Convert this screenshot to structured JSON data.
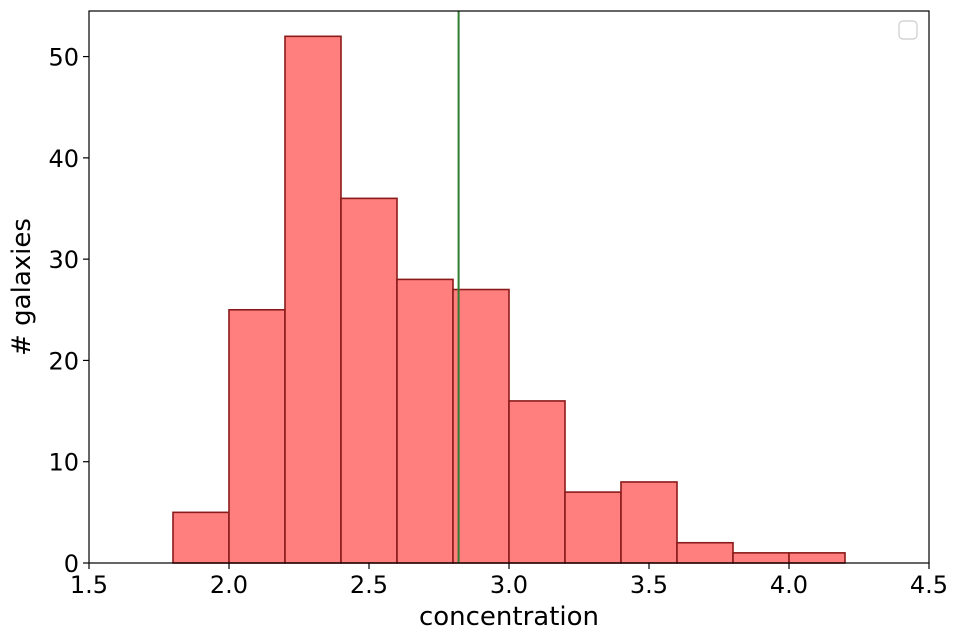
{
  "chart_data": {
    "type": "bar",
    "title": "",
    "xlabel": "concentration",
    "ylabel": "# galaxies",
    "xlim": [
      1.5,
      4.5
    ],
    "ylim": [
      0,
      54.5
    ],
    "xticks": [
      "1.5",
      "2.0",
      "2.5",
      "3.0",
      "3.5",
      "4.0",
      "4.5"
    ],
    "yticks": [
      "0",
      "10",
      "20",
      "30",
      "40",
      "50"
    ],
    "bins": [
      {
        "x0": 1.6,
        "x1": 1.8,
        "count": 0
      },
      {
        "x0": 1.8,
        "x1": 2.0,
        "count": 5
      },
      {
        "x0": 2.0,
        "x1": 2.2,
        "count": 25
      },
      {
        "x0": 2.2,
        "x1": 2.4,
        "count": 52
      },
      {
        "x0": 2.4,
        "x1": 2.6,
        "count": 36
      },
      {
        "x0": 2.6,
        "x1": 2.8,
        "count": 28
      },
      {
        "x0": 2.8,
        "x1": 3.0,
        "count": 27
      },
      {
        "x0": 3.0,
        "x1": 3.2,
        "count": 16
      },
      {
        "x0": 3.2,
        "x1": 3.4,
        "count": 7
      },
      {
        "x0": 3.4,
        "x1": 3.6,
        "count": 8
      },
      {
        "x0": 3.6,
        "x1": 3.8,
        "count": 2
      },
      {
        "x0": 3.8,
        "x1": 4.0,
        "count": 1
      },
      {
        "x0": 4.0,
        "x1": 4.2,
        "count": 1
      },
      {
        "x0": 4.2,
        "x1": 4.4,
        "count": 0
      }
    ],
    "vline": {
      "x": 2.82,
      "color": "#2e7d32"
    },
    "bar_fill": "#ff7f7f",
    "bar_edge": "#8b1a1a",
    "legend": {
      "placement": "top-right",
      "entries": []
    },
    "grid": false
  }
}
